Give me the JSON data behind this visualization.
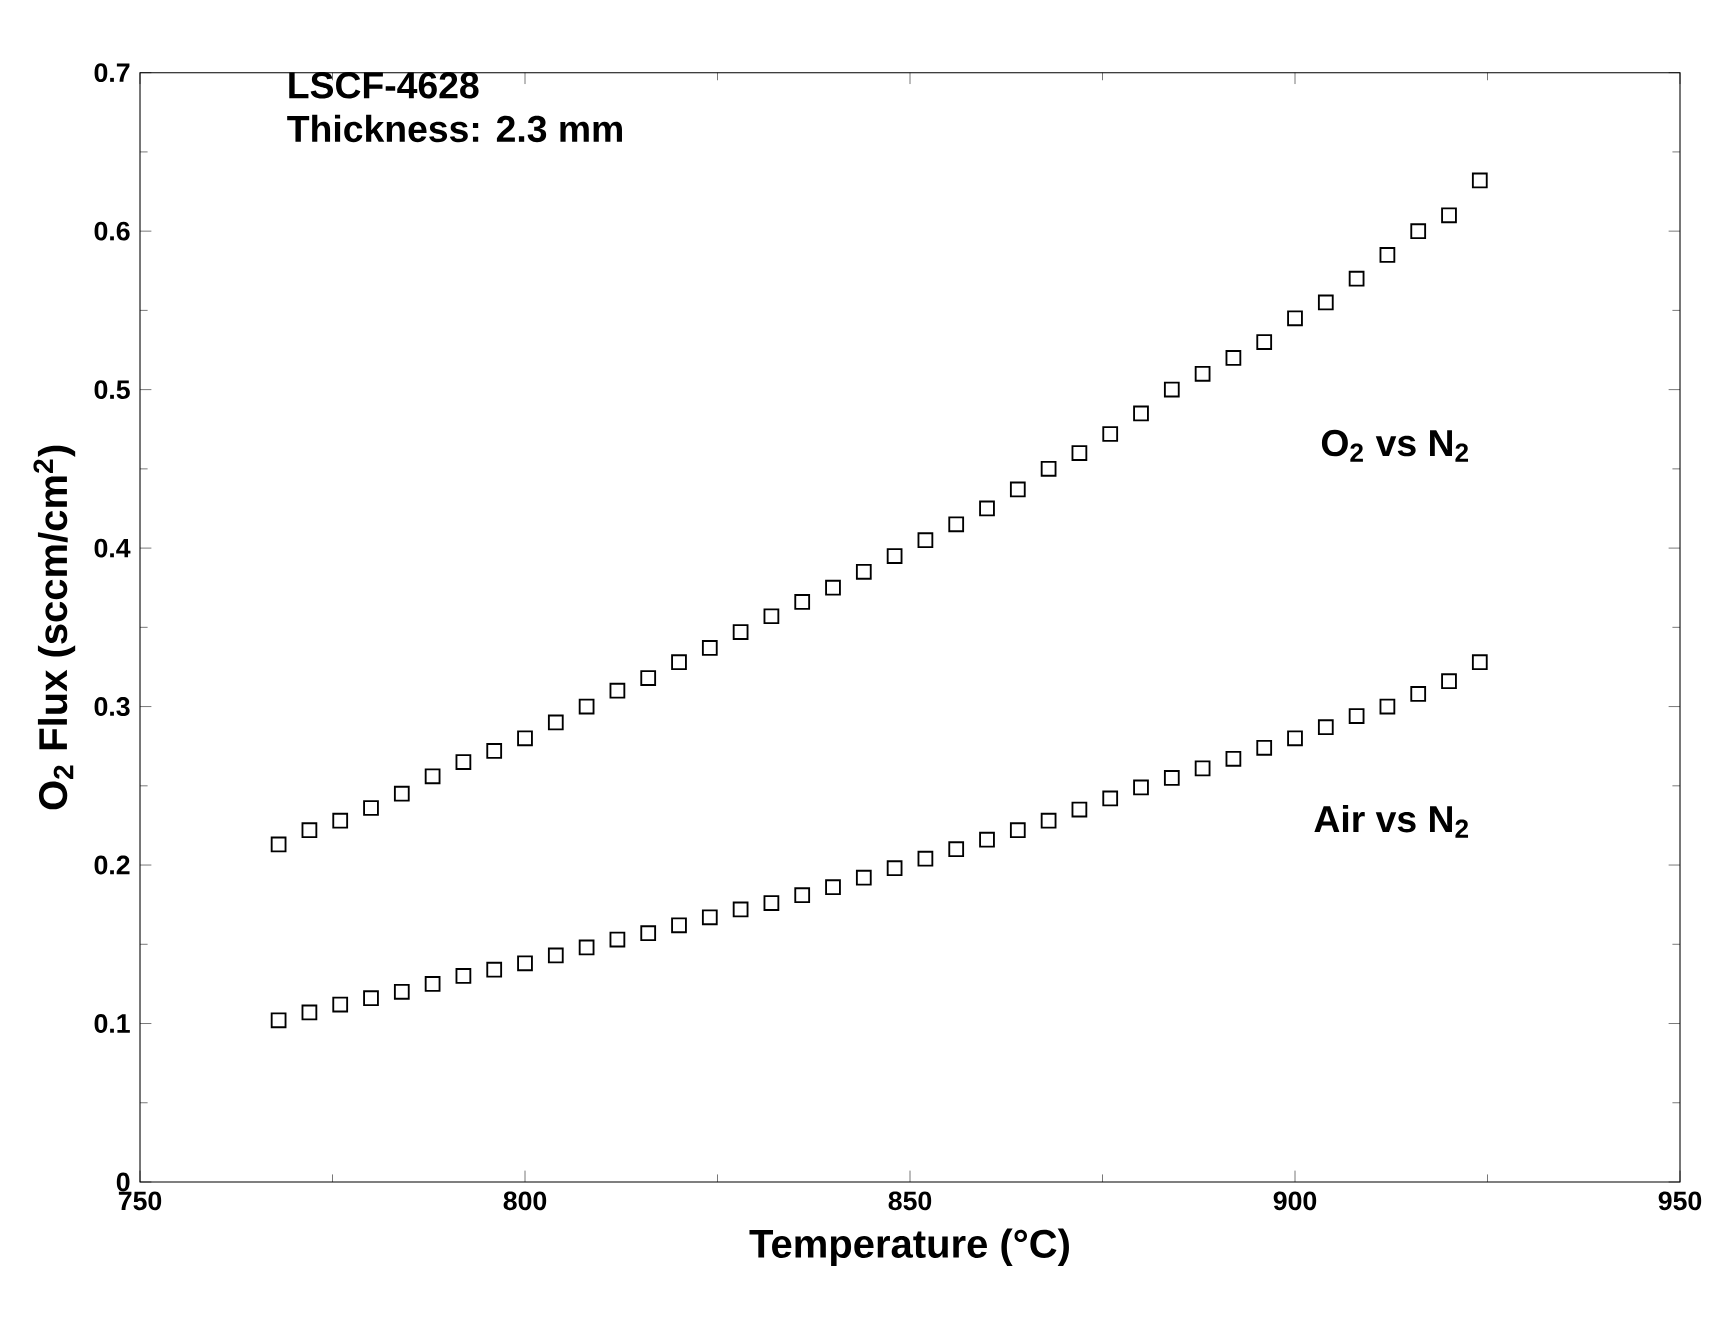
{
  "chart_data": {
    "type": "scatter",
    "xlabel": "Temperature (°C)",
    "ylabel": "O$_{2}$ Flux (sccm/cm$^{2}$)",
    "xlim": [
      750,
      950
    ],
    "xticks": [
      750,
      800,
      850,
      900,
      950
    ],
    "ylim": [
      0,
      0.7
    ],
    "yticks": [
      0,
      0.1,
      0.2,
      0.3,
      0.4,
      0.5,
      0.6,
      0.7
    ],
    "marker": "square",
    "legend": false,
    "grid": false,
    "annotations": [
      "LSCF-4628",
      "Thickness:  2.3 mm"
    ],
    "series": [
      {
        "name": "O$_{2}$ vs N$_{2}$",
        "color": "#000000",
        "x": [
          768,
          772,
          776,
          780,
          784,
          788,
          792,
          796,
          800,
          804,
          808,
          812,
          816,
          820,
          824,
          828,
          832,
          836,
          840,
          844,
          848,
          852,
          856,
          860,
          864,
          868,
          872,
          876,
          880,
          884,
          888,
          892,
          896,
          900,
          904,
          908,
          912,
          916,
          920,
          924
        ],
        "values": [
          0.213,
          0.222,
          0.228,
          0.236,
          0.245,
          0.256,
          0.265,
          0.272,
          0.28,
          0.29,
          0.3,
          0.31,
          0.318,
          0.328,
          0.337,
          0.347,
          0.357,
          0.366,
          0.375,
          0.385,
          0.395,
          0.405,
          0.415,
          0.425,
          0.437,
          0.45,
          0.46,
          0.472,
          0.485,
          0.5,
          0.51,
          0.52,
          0.53,
          0.545,
          0.555,
          0.57,
          0.585,
          0.6,
          0.61,
          0.632
        ]
      },
      {
        "name": "Air vs N$_{2}$",
        "color": "#000000",
        "x": [
          768,
          772,
          776,
          780,
          784,
          788,
          792,
          796,
          800,
          804,
          808,
          812,
          816,
          820,
          824,
          828,
          832,
          836,
          840,
          844,
          848,
          852,
          856,
          860,
          864,
          868,
          872,
          876,
          880,
          884,
          888,
          892,
          896,
          900,
          904,
          908,
          912,
          916,
          920,
          924
        ],
        "values": [
          0.102,
          0.107,
          0.112,
          0.116,
          0.12,
          0.125,
          0.13,
          0.134,
          0.138,
          0.143,
          0.148,
          0.153,
          0.157,
          0.162,
          0.167,
          0.172,
          0.176,
          0.181,
          0.186,
          0.192,
          0.198,
          0.204,
          0.21,
          0.216,
          0.222,
          0.228,
          0.235,
          0.242,
          0.249,
          0.255,
          0.261,
          0.267,
          0.274,
          0.28,
          0.287,
          0.294,
          0.3,
          0.308,
          0.316,
          0.328
        ]
      }
    ]
  }
}
